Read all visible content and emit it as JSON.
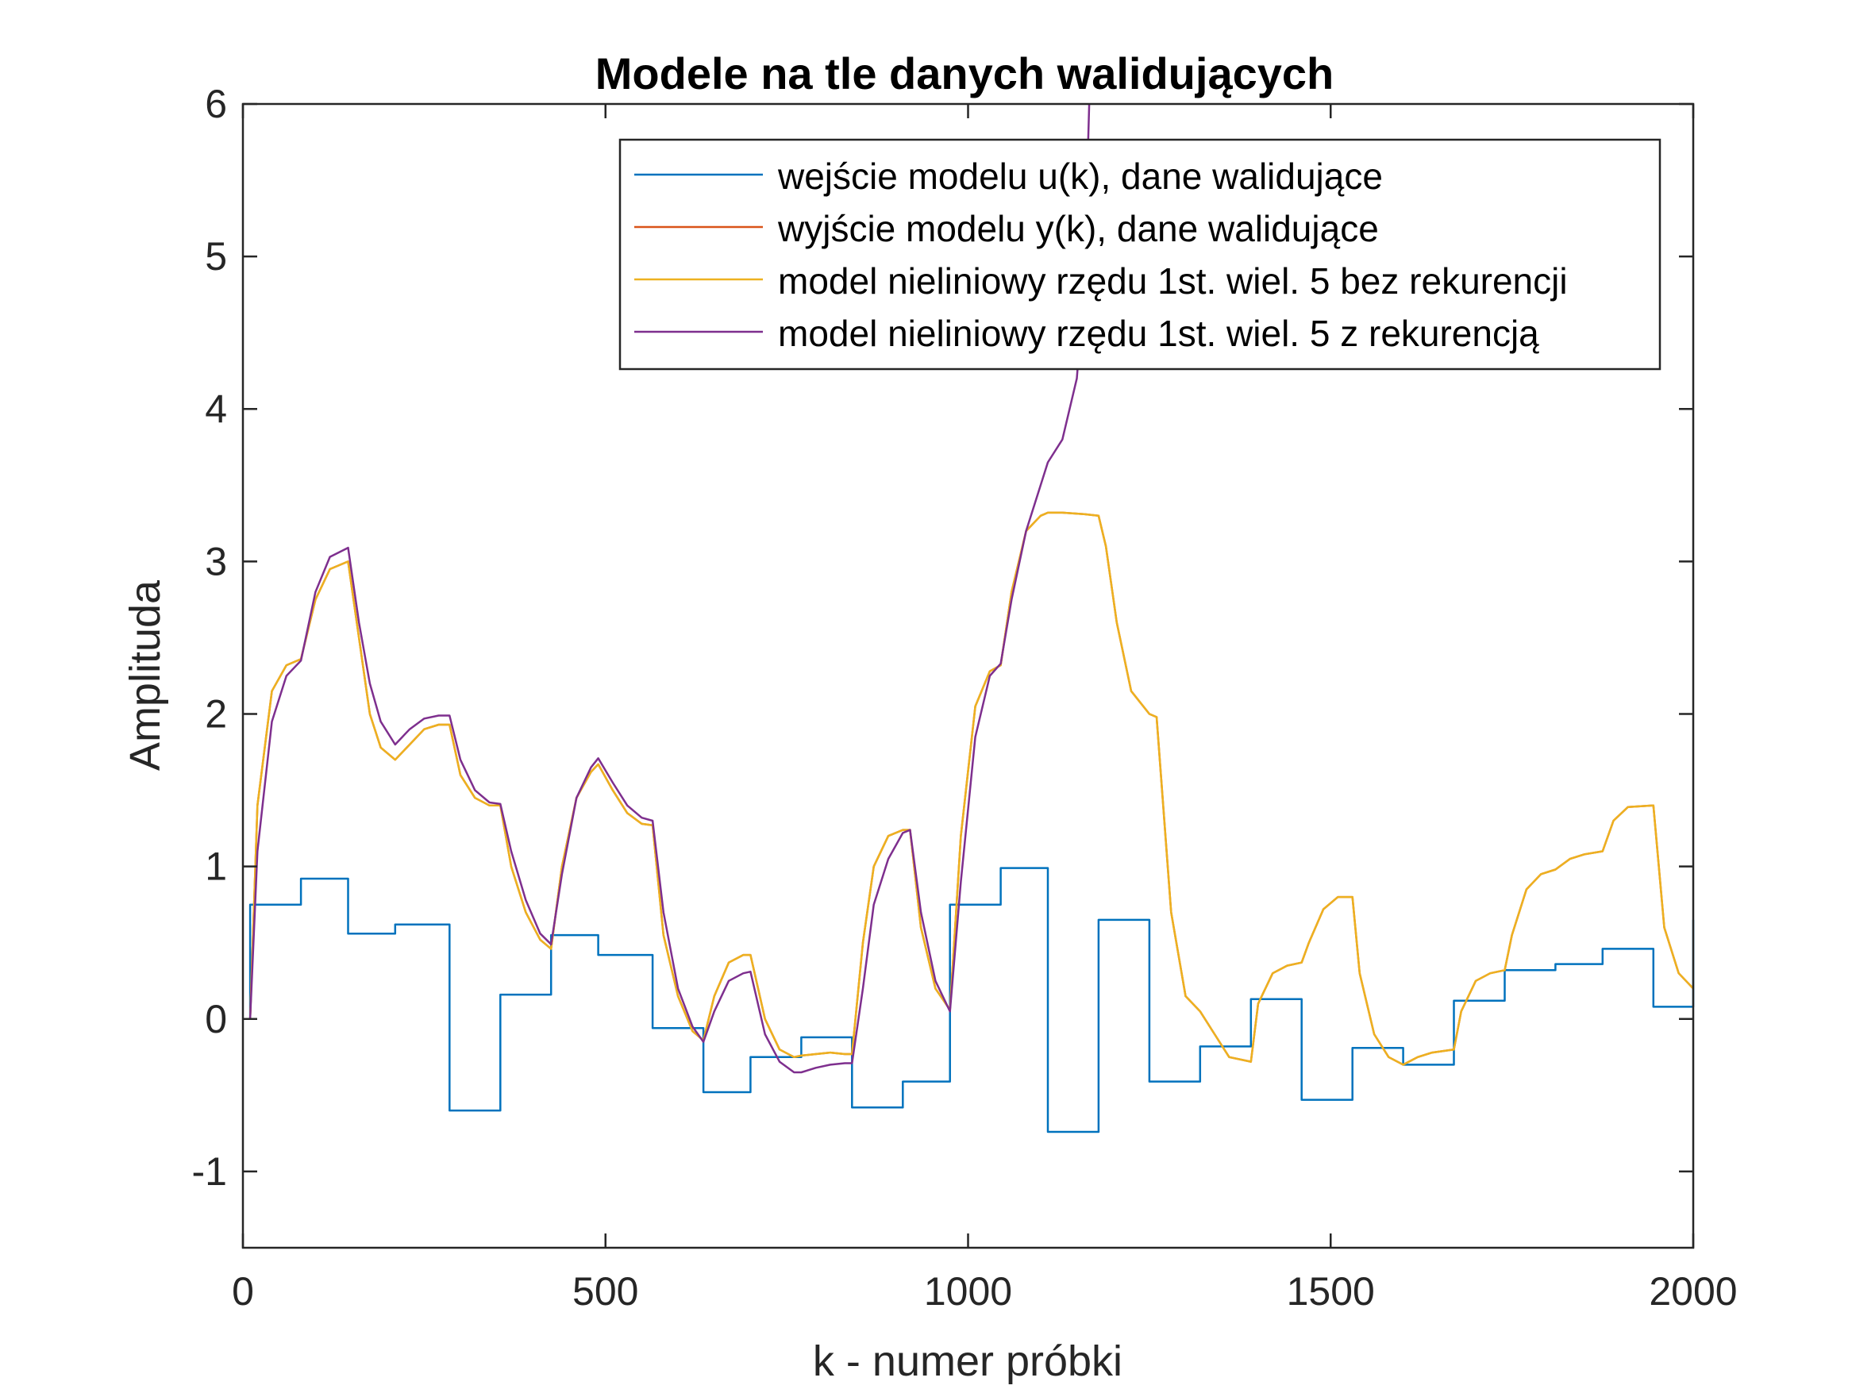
{
  "chart_data": {
    "type": "line",
    "title": "Modele na tle danych walidujących",
    "xlabel": "k - numer próbki",
    "ylabel": "Amplituda",
    "xlim": [
      0,
      2000
    ],
    "ylim": [
      -1.5,
      6
    ],
    "xticks": [
      0,
      500,
      1000,
      1500,
      2000
    ],
    "xtick_labels": [
      "0",
      "500",
      "1000",
      "1500",
      "2000"
    ],
    "yticks": [
      -1,
      0,
      1,
      2,
      3,
      4,
      5,
      6
    ],
    "ytick_labels": [
      "-1",
      "0",
      "1",
      "2",
      "3",
      "4",
      "5",
      "6"
    ],
    "grid": false,
    "legend_position": "top-right",
    "series": [
      {
        "name": "wejście modelu u(k), dane walidujące",
        "color": "#0072BD",
        "x": [
          0,
          10,
          10,
          80,
          80,
          145,
          145,
          210,
          210,
          285,
          285,
          355,
          355,
          425,
          425,
          490,
          490,
          565,
          565,
          635,
          635,
          700,
          700,
          770,
          770,
          840,
          840,
          910,
          910,
          975,
          975,
          1045,
          1045,
          1110,
          1110,
          1180,
          1180,
          1250,
          1250,
          1320,
          1320,
          1390,
          1390,
          1460,
          1460,
          1530,
          1530,
          1600,
          1600,
          1670,
          1670,
          1740,
          1740,
          1810,
          1810,
          1875,
          1875,
          1945,
          1945,
          2000,
          2000
        ],
        "y": [
          0,
          0,
          0.75,
          0.75,
          0.92,
          0.92,
          0.56,
          0.56,
          0.62,
          0.62,
          -0.6,
          -0.6,
          0.16,
          0.16,
          0.55,
          0.55,
          0.42,
          0.42,
          -0.06,
          -0.06,
          -0.48,
          -0.48,
          -0.25,
          -0.25,
          -0.12,
          -0.12,
          -0.58,
          -0.58,
          -0.41,
          -0.41,
          0.75,
          0.75,
          0.99,
          0.99,
          -0.74,
          -0.74,
          0.65,
          0.65,
          -0.41,
          -0.41,
          -0.18,
          -0.18,
          0.13,
          0.13,
          -0.53,
          -0.53,
          -0.19,
          -0.19,
          -0.3,
          -0.3,
          0.12,
          0.12,
          0.32,
          0.32,
          0.36,
          0.36,
          0.46,
          0.46,
          0.08,
          0.08,
          0.65
        ]
      },
      {
        "name": "wyjście modelu y(k), dane walidujące",
        "color": "#D95319",
        "x": [
          0,
          10,
          20,
          40,
          60,
          80,
          100,
          120,
          145,
          160,
          175,
          190,
          210,
          230,
          250,
          270,
          285,
          300,
          320,
          340,
          355,
          370,
          390,
          410,
          425,
          440,
          460,
          480,
          490,
          510,
          530,
          550,
          565,
          580,
          600,
          620,
          635,
          650,
          670,
          690,
          700,
          720,
          740,
          760,
          770,
          790,
          810,
          830,
          840,
          855,
          870,
          890,
          910,
          920,
          935,
          955,
          975,
          990,
          1010,
          1030,
          1045,
          1060,
          1080,
          1100,
          1110,
          1130,
          1160,
          1180,
          1190,
          1205,
          1225,
          1250,
          1260,
          1280,
          1300,
          1320,
          1340,
          1360,
          1390,
          1400,
          1420,
          1440,
          1460,
          1470,
          1490,
          1510,
          1530,
          1540,
          1560,
          1580,
          1600,
          1620,
          1640,
          1670,
          1680,
          1700,
          1720,
          1740,
          1750,
          1770,
          1790,
          1810,
          1830,
          1850,
          1875,
          1890,
          1910,
          1945,
          1960,
          1980,
          2000
        ],
        "y": [
          0,
          0,
          1.4,
          2.15,
          2.32,
          2.36,
          2.75,
          2.95,
          3.0,
          2.5,
          2.0,
          1.78,
          1.7,
          1.8,
          1.9,
          1.93,
          1.93,
          1.6,
          1.45,
          1.4,
          1.4,
          1.0,
          0.7,
          0.52,
          0.46,
          1.0,
          1.45,
          1.62,
          1.67,
          1.5,
          1.35,
          1.28,
          1.27,
          0.55,
          0.15,
          -0.08,
          -0.14,
          0.15,
          0.37,
          0.42,
          0.42,
          0.0,
          -0.2,
          -0.25,
          -0.24,
          -0.23,
          -0.22,
          -0.23,
          -0.23,
          0.5,
          1.0,
          1.2,
          1.24,
          1.24,
          0.6,
          0.2,
          0.06,
          1.2,
          2.05,
          2.28,
          2.32,
          2.8,
          3.2,
          3.3,
          3.32,
          3.32,
          3.31,
          3.3,
          3.1,
          2.6,
          2.15,
          2.0,
          1.98,
          0.7,
          0.15,
          0.05,
          -0.1,
          -0.25,
          -0.28,
          0.1,
          0.3,
          0.35,
          0.37,
          0.5,
          0.72,
          0.8,
          0.8,
          0.3,
          -0.1,
          -0.25,
          -0.3,
          -0.25,
          -0.22,
          -0.2,
          0.05,
          0.25,
          0.3,
          0.32,
          0.55,
          0.85,
          0.95,
          0.98,
          1.05,
          1.08,
          1.1,
          1.3,
          1.39,
          1.4,
          0.6,
          0.3,
          0.2
        ]
      },
      {
        "name": "model nieliniowy rzędu 1st. wiel. 5 bez rekurencji",
        "color": "#EDB120",
        "x": [
          0,
          10,
          20,
          40,
          60,
          80,
          100,
          120,
          145,
          160,
          175,
          190,
          210,
          230,
          250,
          270,
          285,
          300,
          320,
          340,
          355,
          370,
          390,
          410,
          425,
          440,
          460,
          480,
          490,
          510,
          530,
          550,
          565,
          580,
          600,
          620,
          635,
          650,
          670,
          690,
          700,
          720,
          740,
          760,
          770,
          790,
          810,
          830,
          840,
          855,
          870,
          890,
          910,
          920,
          935,
          955,
          975,
          990,
          1010,
          1030,
          1045,
          1060,
          1080,
          1100,
          1110,
          1130,
          1160,
          1180,
          1190,
          1205,
          1225,
          1250,
          1260,
          1280,
          1300,
          1320,
          1340,
          1360,
          1390,
          1400,
          1420,
          1440,
          1460,
          1470,
          1490,
          1510,
          1530,
          1540,
          1560,
          1580,
          1600,
          1620,
          1640,
          1670,
          1680,
          1700,
          1720,
          1740,
          1750,
          1770,
          1790,
          1810,
          1830,
          1850,
          1875,
          1890,
          1910,
          1945,
          1960,
          1980,
          2000
        ],
        "y": [
          0,
          0,
          1.4,
          2.15,
          2.32,
          2.36,
          2.75,
          2.95,
          3.0,
          2.5,
          2.0,
          1.78,
          1.7,
          1.8,
          1.9,
          1.93,
          1.93,
          1.6,
          1.45,
          1.4,
          1.4,
          1.0,
          0.7,
          0.52,
          0.46,
          1.0,
          1.45,
          1.62,
          1.67,
          1.5,
          1.35,
          1.28,
          1.27,
          0.55,
          0.15,
          -0.08,
          -0.14,
          0.15,
          0.37,
          0.42,
          0.42,
          0.0,
          -0.2,
          -0.25,
          -0.24,
          -0.23,
          -0.22,
          -0.23,
          -0.23,
          0.5,
          1.0,
          1.2,
          1.24,
          1.24,
          0.6,
          0.2,
          0.06,
          1.2,
          2.05,
          2.28,
          2.32,
          2.8,
          3.2,
          3.3,
          3.32,
          3.32,
          3.31,
          3.3,
          3.1,
          2.6,
          2.15,
          2.0,
          1.98,
          0.7,
          0.15,
          0.05,
          -0.1,
          -0.25,
          -0.28,
          0.1,
          0.3,
          0.35,
          0.37,
          0.5,
          0.72,
          0.8,
          0.8,
          0.3,
          -0.1,
          -0.25,
          -0.3,
          -0.25,
          -0.22,
          -0.2,
          0.05,
          0.25,
          0.3,
          0.32,
          0.55,
          0.85,
          0.95,
          0.98,
          1.05,
          1.08,
          1.1,
          1.3,
          1.39,
          1.4,
          0.6,
          0.3,
          0.2
        ]
      },
      {
        "name": "model nieliniowy rzędu 1st. wiel. 5 z rekurencją",
        "color": "#7E2F8E",
        "x": [
          0,
          10,
          20,
          40,
          60,
          80,
          100,
          120,
          145,
          160,
          175,
          190,
          210,
          230,
          250,
          270,
          285,
          300,
          320,
          340,
          355,
          370,
          390,
          410,
          425,
          440,
          460,
          480,
          490,
          510,
          530,
          550,
          565,
          580,
          600,
          620,
          635,
          650,
          670,
          690,
          700,
          720,
          740,
          760,
          770,
          790,
          810,
          830,
          840,
          855,
          870,
          890,
          910,
          920,
          935,
          955,
          975,
          990,
          1010,
          1030,
          1045,
          1060,
          1080,
          1100,
          1110,
          1130,
          1150,
          1160,
          1167
        ],
        "y": [
          0,
          0,
          1.1,
          1.95,
          2.25,
          2.35,
          2.8,
          3.03,
          3.09,
          2.6,
          2.2,
          1.95,
          1.8,
          1.9,
          1.97,
          1.99,
          1.99,
          1.7,
          1.5,
          1.42,
          1.41,
          1.1,
          0.78,
          0.56,
          0.49,
          0.95,
          1.45,
          1.65,
          1.71,
          1.55,
          1.4,
          1.32,
          1.3,
          0.7,
          0.2,
          -0.05,
          -0.15,
          0.05,
          0.25,
          0.3,
          0.31,
          -0.1,
          -0.28,
          -0.35,
          -0.35,
          -0.32,
          -0.3,
          -0.29,
          -0.29,
          0.2,
          0.75,
          1.05,
          1.22,
          1.24,
          0.7,
          0.25,
          0.05,
          0.9,
          1.85,
          2.25,
          2.33,
          2.75,
          3.2,
          3.5,
          3.65,
          3.8,
          4.2,
          4.8,
          6.0
        ]
      }
    ]
  }
}
